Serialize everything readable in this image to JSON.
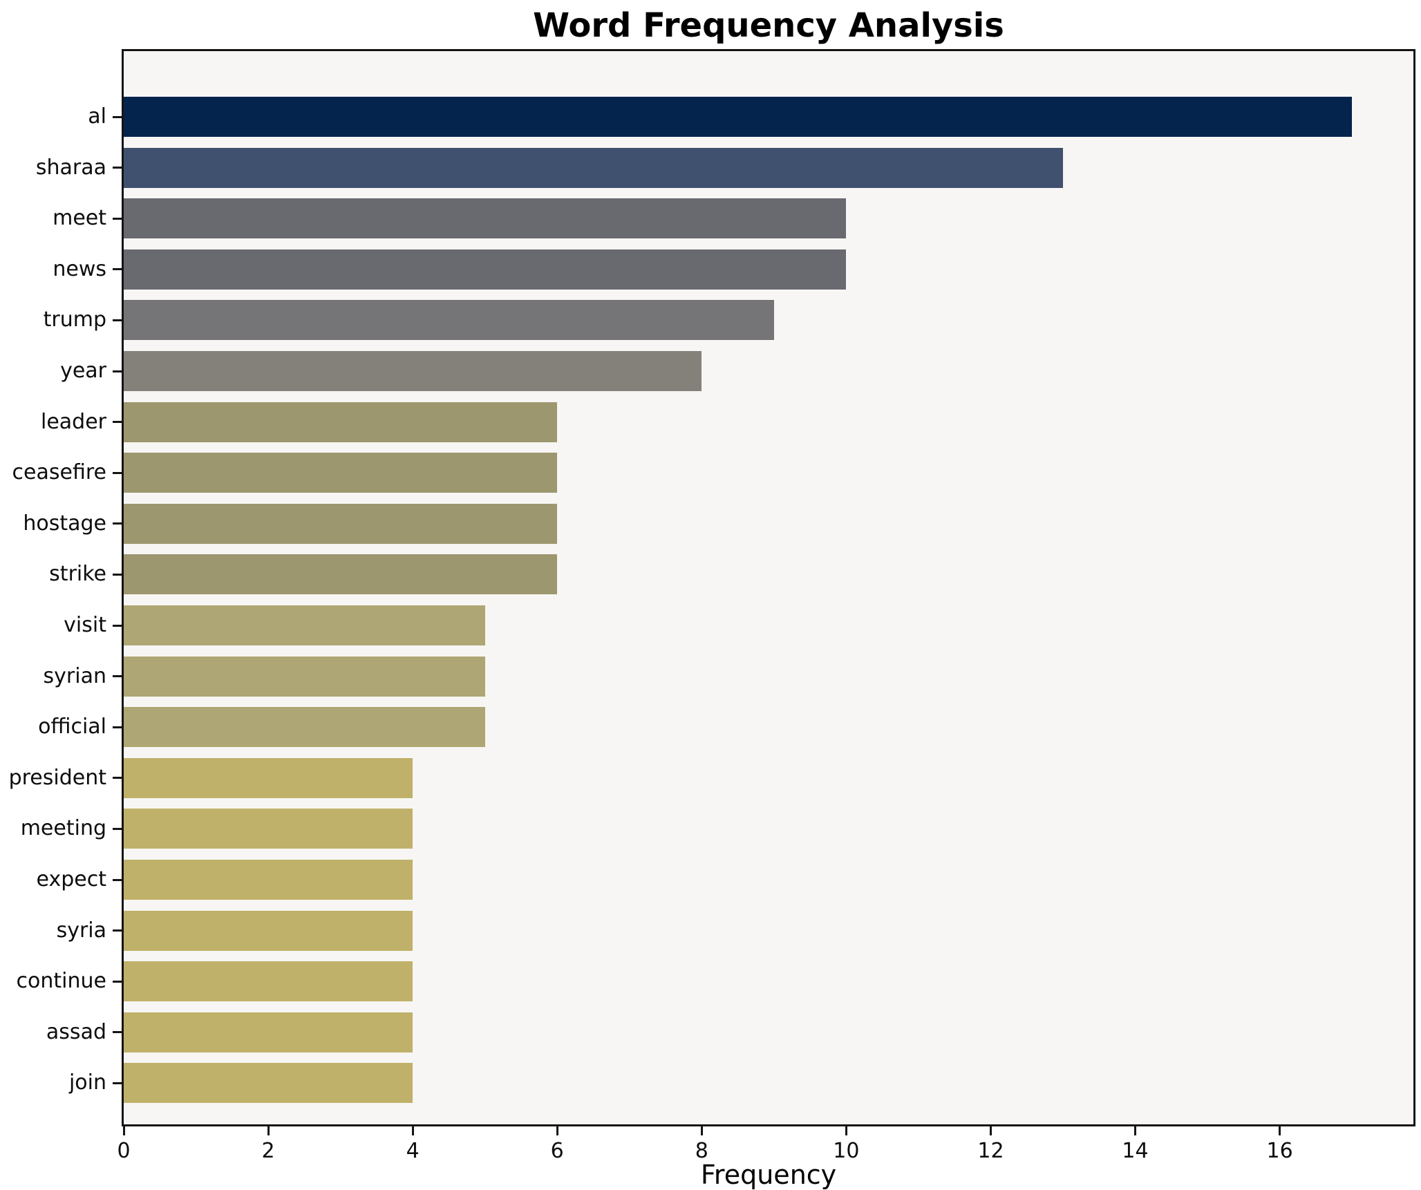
{
  "chart_data": {
    "type": "bar",
    "orientation": "horizontal",
    "title": "Word Frequency Analysis",
    "xlabel": "Frequency",
    "ylabel": "",
    "xlim": [
      0,
      17.85
    ],
    "xticks": [
      0,
      2,
      4,
      6,
      8,
      10,
      12,
      14,
      16
    ],
    "grid": false,
    "legend_position": "none",
    "plot_background": "#f7f6f4",
    "figure_background": "#ffffff",
    "spine_color": "#141414",
    "categories": [
      "al",
      "sharaa",
      "meet",
      "news",
      "trump",
      "year",
      "leader",
      "ceasefire",
      "hostage",
      "strike",
      "visit",
      "syrian",
      "official",
      "president",
      "meeting",
      "expect",
      "syria",
      "continue",
      "assad",
      "join"
    ],
    "values": [
      17,
      13,
      10,
      10,
      9,
      8,
      6,
      6,
      6,
      6,
      5,
      5,
      5,
      4,
      4,
      4,
      4,
      4,
      4,
      4
    ],
    "bar_colors": [
      "#04234d",
      "#40506f",
      "#696a70",
      "#696a70",
      "#757476",
      "#84817a",
      "#9d9770",
      "#9d9770",
      "#9d9770",
      "#9d9770",
      "#aea674",
      "#aea674",
      "#aea674",
      "#c0b16a",
      "#c0b16a",
      "#c0b16a",
      "#c0b16a",
      "#c0b16a",
      "#c0b16a",
      "#c0b16a"
    ]
  }
}
